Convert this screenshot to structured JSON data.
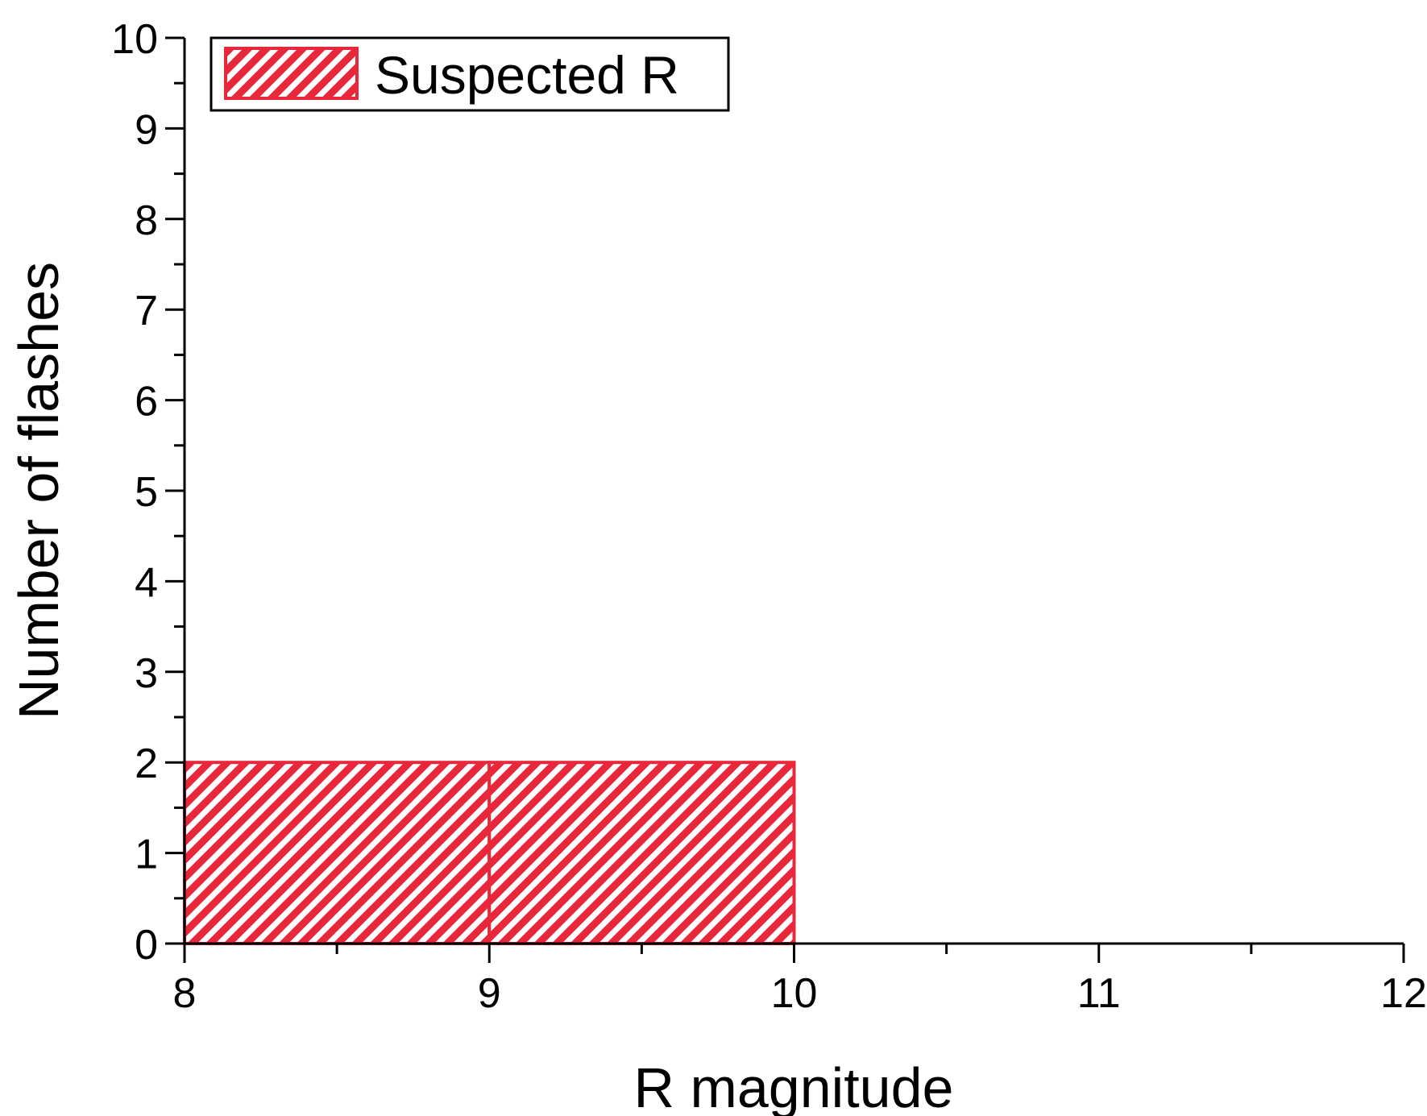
{
  "chart_data": {
    "type": "bar",
    "bins": [
      {
        "x_start": 8,
        "x_end": 9,
        "value": 2
      },
      {
        "x_start": 9,
        "x_end": 10,
        "value": 2
      },
      {
        "x_start": 10,
        "x_end": 11,
        "value": 0
      },
      {
        "x_start": 11,
        "x_end": 12,
        "value": 0
      }
    ],
    "series": [
      {
        "name": "Suspected R",
        "values": [
          2,
          2,
          0,
          0
        ]
      }
    ],
    "xlabel": "R magnitude",
    "ylabel": "Number of flashes",
    "xlim": [
      8,
      12
    ],
    "ylim": [
      0,
      10
    ],
    "xticks": [
      "8",
      "9",
      "10",
      "11",
      "12"
    ],
    "yticks": [
      "0",
      "1",
      "2",
      "3",
      "4",
      "5",
      "6",
      "7",
      "8",
      "9",
      "10"
    ],
    "grid": false,
    "legend_position": "top-left",
    "bar_pattern": "diagonal hatch",
    "colors": {
      "bar": "#e8273a",
      "axis": "#000000"
    }
  }
}
